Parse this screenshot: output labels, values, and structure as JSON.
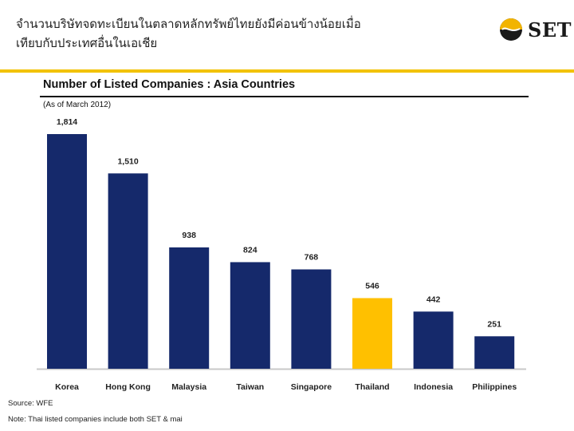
{
  "header": {
    "title_line1": "จำนวนบริษัทจดทะเบียนในตลาดหลักทรัพย์ไทยยังมีค่อนข้างน้อยเมื่อ",
    "title_line2": "เทียบกับประเทศอื่นในเอเชีย"
  },
  "logo": {
    "text": "SET",
    "icon": "set-logo-icon",
    "colors": {
      "gold": "#f2b400",
      "dark": "#1a1a1a"
    }
  },
  "colors": {
    "bar_default": "#15296b",
    "bar_highlight": "#ffc000",
    "accent_rule": "#f2c200"
  },
  "chart_data": {
    "type": "bar",
    "title": "Number of Listed Companies : Asia Countries",
    "subtitle": "(As of March 2012)",
    "categories": [
      "Korea",
      "Hong Kong",
      "Malaysia",
      "Taiwan",
      "Singapore",
      "Thailand",
      "Indonesia",
      "Philippines"
    ],
    "values": [
      1814,
      1510,
      938,
      824,
      768,
      546,
      442,
      251
    ],
    "labels": [
      "1,814",
      "1,510",
      "938",
      "824",
      "768",
      "546",
      "442",
      "251"
    ],
    "highlight": "Thailand",
    "xlabel": "",
    "ylabel": "",
    "ylim": [
      0,
      1814
    ]
  },
  "footer": {
    "source": "Source: WFE",
    "note": "Note: Thai listed companies include both SET & mai"
  }
}
